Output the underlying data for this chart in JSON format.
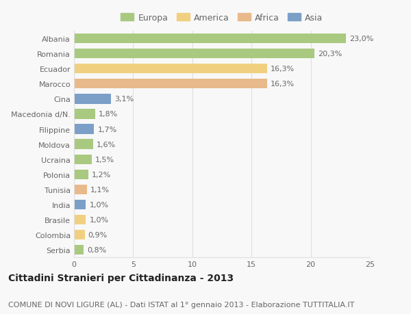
{
  "categories": [
    "Albania",
    "Romania",
    "Ecuador",
    "Marocco",
    "Cina",
    "Macedonia d/N.",
    "Filippine",
    "Moldova",
    "Ucraina",
    "Polonia",
    "Tunisia",
    "India",
    "Brasile",
    "Colombia",
    "Serbia"
  ],
  "values": [
    23.0,
    20.3,
    16.3,
    16.3,
    3.1,
    1.8,
    1.7,
    1.6,
    1.5,
    1.2,
    1.1,
    1.0,
    1.0,
    0.9,
    0.8
  ],
  "labels": [
    "23,0%",
    "20,3%",
    "16,3%",
    "16,3%",
    "3,1%",
    "1,8%",
    "1,7%",
    "1,6%",
    "1,5%",
    "1,2%",
    "1,1%",
    "1,0%",
    "1,0%",
    "0,9%",
    "0,8%"
  ],
  "continents": [
    "Europa",
    "Europa",
    "America",
    "Africa",
    "Asia",
    "Europa",
    "Asia",
    "Europa",
    "Europa",
    "Europa",
    "Africa",
    "Asia",
    "America",
    "America",
    "Europa"
  ],
  "colors": {
    "Europa": "#a8c97f",
    "America": "#f0d080",
    "Africa": "#e8b98a",
    "Asia": "#7b9fc7"
  },
  "legend_order": [
    "Europa",
    "America",
    "Africa",
    "Asia"
  ],
  "title": "Cittadini Stranieri per Cittadinanza - 2013",
  "subtitle": "COMUNE DI NOVI LIGURE (AL) - Dati ISTAT al 1° gennaio 2013 - Elaborazione TUTTITALIA.IT",
  "xlim": [
    0,
    25
  ],
  "xticks": [
    0,
    5,
    10,
    15,
    20,
    25
  ],
  "background_color": "#f8f8f8",
  "grid_color": "#e0e0e0",
  "bar_height": 0.65,
  "title_fontsize": 10,
  "subtitle_fontsize": 8,
  "label_fontsize": 8,
  "tick_fontsize": 8,
  "legend_fontsize": 9
}
